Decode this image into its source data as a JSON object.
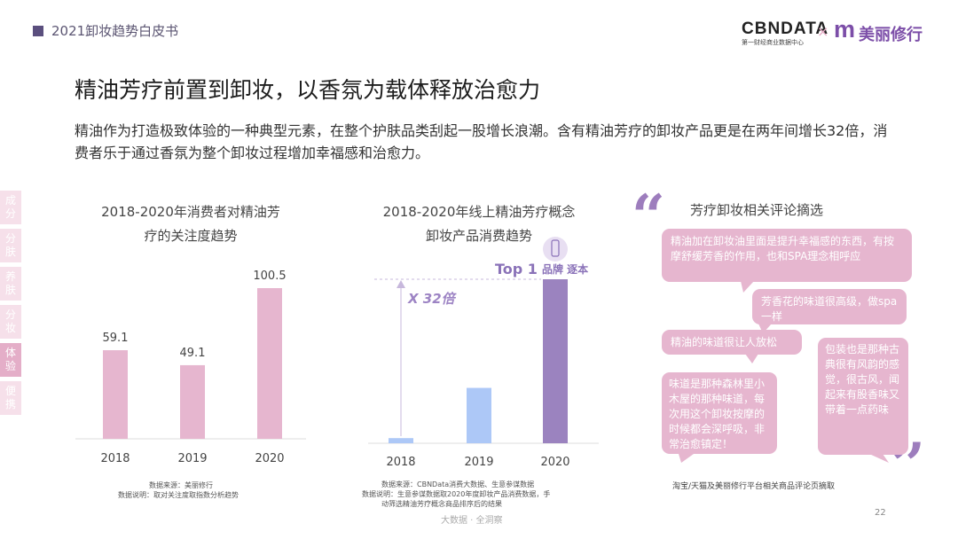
{
  "header": {
    "title": "2021卸妆趋势白皮书",
    "logo_cbn": "CBNDATA",
    "logo_cbn_sub": "第一财经商业数据中心",
    "logo_x": "×",
    "logo_m": "m",
    "logo_brand": "美丽修行"
  },
  "main_title": "精油芳疗前置到卸妆，以香氛为载体释放治愈力",
  "intro": "精油作为打造极致体验的一种典型元素，在整个护肤品类刮起一股增长浪潮。含有精油芳疗的卸妆产品更是在两年间增长32倍，消费者乐于通过香氛为整个卸妆过程增加幸福感和治愈力。",
  "side_tabs": [
    {
      "label": "成分",
      "active": false
    },
    {
      "label": "分肤",
      "active": false
    },
    {
      "label": "养肤",
      "active": false
    },
    {
      "label": "分妆",
      "active": false
    },
    {
      "label": "体验",
      "active": true
    },
    {
      "label": "便携",
      "active": false
    }
  ],
  "chart1": {
    "title_line1": "2018-2020年消费者对精油芳",
    "title_line2": "疗的关注度趋势",
    "source_line1": "数据来源：美丽修行",
    "source_line2": "数据说明：取对关注度取指数分析趋势"
  },
  "chart2": {
    "title_line1": "2018-2020年线上精油芳疗概念",
    "title_line2": "卸妆产品消费趋势",
    "top_label": "Top 1",
    "brand_label": "品牌 逐本",
    "growth_label": "X 32倍",
    "source_line1": "数据来源：CBNData消费大数据、生意参谋数据",
    "source_line2": "数据说明：生意参谋数据取2020年度卸妆产品消费数据，手",
    "source_line3": "动筛选精油芳疗概念商品排序后的结果"
  },
  "chart_data": [
    {
      "type": "bar",
      "title": "2018-2020年消费者对精油芳疗的关注度趋势",
      "categories": [
        "2018",
        "2019",
        "2020"
      ],
      "values": [
        59.1,
        49.1,
        100.5
      ],
      "ylim": [
        0,
        100.5
      ],
      "colors": [
        "#e6b6cf",
        "#e6b6cf",
        "#e6b6cf"
      ],
      "data_labels": [
        "59.1",
        "49.1",
        "100.5"
      ],
      "grid": false
    },
    {
      "type": "bar",
      "title": "2018-2020年线上精油芳疗概念卸妆产品消费趋势",
      "categories": [
        "2018",
        "2019",
        "2020"
      ],
      "values": [
        1,
        10.8,
        32
      ],
      "ylim": [
        0,
        32
      ],
      "colors": [
        "#adc8f7",
        "#adc8f7",
        "#9b83bf"
      ],
      "grid": false
    }
  ],
  "reviews": {
    "title": "芳疗卸妆相关评论摘选",
    "items": [
      "精油加在卸妆油里面是提升幸福感的东西，有按摩舒缓芳香的作用，也和SPA理念相呼应",
      "芳香花的味道很高级，做spa一样",
      "精油的味道很让人放松",
      "味道是那种森林里小木屋的那种味道，每次用这个卸妆按摩的时候都会深呼吸，非常治愈镇定！",
      "包装也是那种古典很有风韵的感觉，很古风，闻起来有股香味又带着一点药味"
    ],
    "source": "淘宝/天猫及美丽修行平台相关商品评论页摘取",
    "open_quote": "“",
    "close_quote": "”"
  },
  "footer": {
    "center": "大数据 · 全洞察",
    "page": "22"
  }
}
